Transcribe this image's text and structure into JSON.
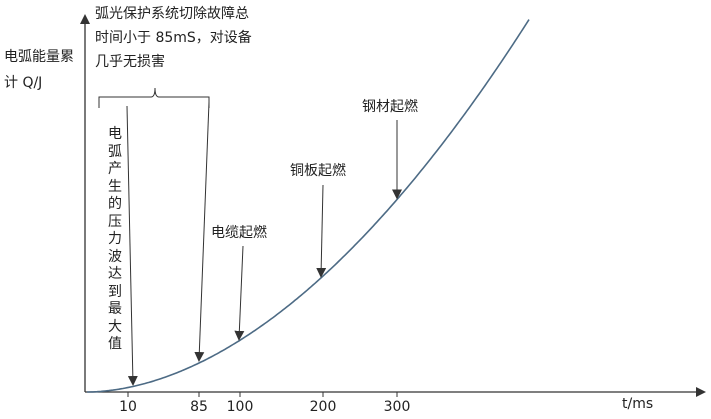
{
  "chart_data": {
    "type": "line",
    "xlabel": "t/ms",
    "ylabel": "电弧能量累计 Q/J",
    "x_ticks": [
      10,
      85,
      100,
      200,
      300
    ],
    "xlim": [
      0,
      600
    ],
    "curve": {
      "shape": "monotonic-increasing, convex"
    },
    "annotations": [
      {
        "id": "pressure",
        "text": "电弧产生的压力波达到最大值",
        "x": 10
      },
      {
        "id": "protection",
        "text": "弧光保护系统切除故障总时间小于 85mS，对设备几乎无损害",
        "x_range": [
          0,
          85
        ]
      },
      {
        "id": "cable",
        "text": "电缆起燃",
        "x": 100
      },
      {
        "id": "copper",
        "text": "铜板起燃",
        "x": 200
      },
      {
        "id": "steel",
        "text": "钢材起燃",
        "x": 300
      }
    ]
  }
}
